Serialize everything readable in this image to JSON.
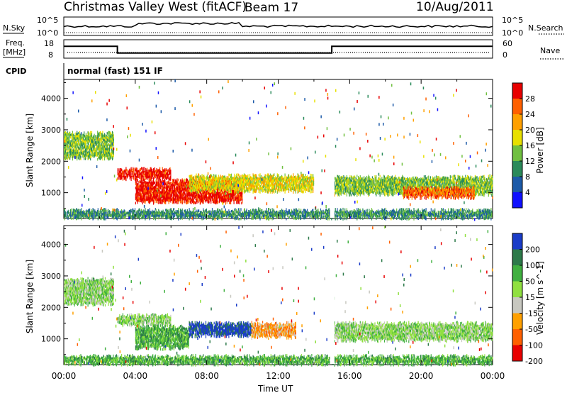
{
  "header": {
    "title": "Christmas Valley West (fitACF)",
    "beam": "Beam 17",
    "date": "10/Aug/2011"
  },
  "strip_labels": {
    "nsky": "N.Sky",
    "nsearch": "N.Search",
    "freq": "Freq.",
    "freq_unit": "[MHz]",
    "nave": "Nave",
    "cpid": "CPID",
    "cpid_text": "normal (fast) 151 IF",
    "nsky_ticks": [
      "10^5",
      "10^0"
    ],
    "nsearch_ticks": [
      "10^5",
      "10^0"
    ],
    "freq_ticks": [
      "18",
      "8"
    ],
    "nave_ticks": [
      "60",
      "0"
    ]
  },
  "chart_data": [
    {
      "type": "heatmap",
      "name": "Power",
      "ylabel": "Slant Range [km]",
      "ylim": [
        180,
        4600
      ],
      "yticks": [
        1000,
        2000,
        3000,
        4000
      ],
      "xlim": [
        0,
        24
      ],
      "colorbar": {
        "label": "Power [dB]",
        "ticks": [
          "28",
          "24",
          "20",
          "16",
          "12",
          "8",
          "4"
        ],
        "colors": [
          "#e80000",
          "#ff6000",
          "#ffa000",
          "#e8e000",
          "#70c040",
          "#2a8a5a",
          "#1c5aa8",
          "#1010ff"
        ]
      },
      "regions": [
        {
          "t0": 0.0,
          "t1": 2.8,
          "r0": 2100,
          "r1": 2900,
          "level": 3
        },
        {
          "t0": 3.0,
          "t1": 6.0,
          "r0": 1450,
          "r1": 1750,
          "level": 7
        },
        {
          "t0": 4.0,
          "t1": 10.0,
          "r0": 700,
          "r1": 1400,
          "level": 7
        },
        {
          "t0": 7.0,
          "t1": 14.0,
          "r0": 1050,
          "r1": 1550,
          "level": 4
        },
        {
          "t0": 15.0,
          "t1": 24.0,
          "r0": 950,
          "r1": 1500,
          "level": 3
        },
        {
          "t0": 19.0,
          "t1": 23.0,
          "r0": 850,
          "r1": 1150,
          "level": 6
        },
        {
          "t0": 0.0,
          "t1": 24.0,
          "r0": 200,
          "r1": 450,
          "level": 2
        }
      ]
    },
    {
      "type": "heatmap",
      "name": "Velocity",
      "ylabel": "Slant Range [km]",
      "xlabel": "Time UT",
      "ylim": [
        180,
        4600
      ],
      "yticks": [
        1000,
        2000,
        3000,
        4000
      ],
      "xlim": [
        0,
        24
      ],
      "xticks": [
        "00:00",
        "04:00",
        "08:00",
        "12:00",
        "16:00",
        "20:00",
        "00:00"
      ],
      "colorbar": {
        "label": "Velocity [m s^-1]",
        "ticks": [
          "200",
          "100",
          "50",
          "15",
          "-15",
          "-50",
          "-100",
          "-200"
        ],
        "colors": [
          "#1a3cc8",
          "#2d7a4a",
          "#40b040",
          "#90e040",
          "#c8c8c0",
          "#ffa000",
          "#ff6000",
          "#e80000"
        ]
      },
      "regions": [
        {
          "t0": 0.0,
          "t1": 2.8,
          "r0": 2100,
          "r1": 2900,
          "level": 4
        },
        {
          "t0": 3.0,
          "t1": 6.0,
          "r0": 1450,
          "r1": 1750,
          "level": 4
        },
        {
          "t0": 4.0,
          "t1": 7.0,
          "r0": 700,
          "r1": 1400,
          "level": 5
        },
        {
          "t0": 7.0,
          "t1": 10.5,
          "r0": 1100,
          "r1": 1500,
          "level": 7
        },
        {
          "t0": 10.5,
          "t1": 13.0,
          "r0": 1050,
          "r1": 1500,
          "level": 2
        },
        {
          "t0": 15.0,
          "t1": 24.0,
          "r0": 950,
          "r1": 1500,
          "level": 4
        },
        {
          "t0": 0.0,
          "t1": 24.0,
          "r0": 200,
          "r1": 450,
          "level": 5
        }
      ]
    }
  ],
  "freq_series": [
    {
      "t0": 0.0,
      "t1": 3.0,
      "value": 16
    },
    {
      "t0": 3.0,
      "t1": 15.0,
      "value": 10
    },
    {
      "t0": 15.0,
      "t1": 24.0,
      "value": 16
    }
  ]
}
